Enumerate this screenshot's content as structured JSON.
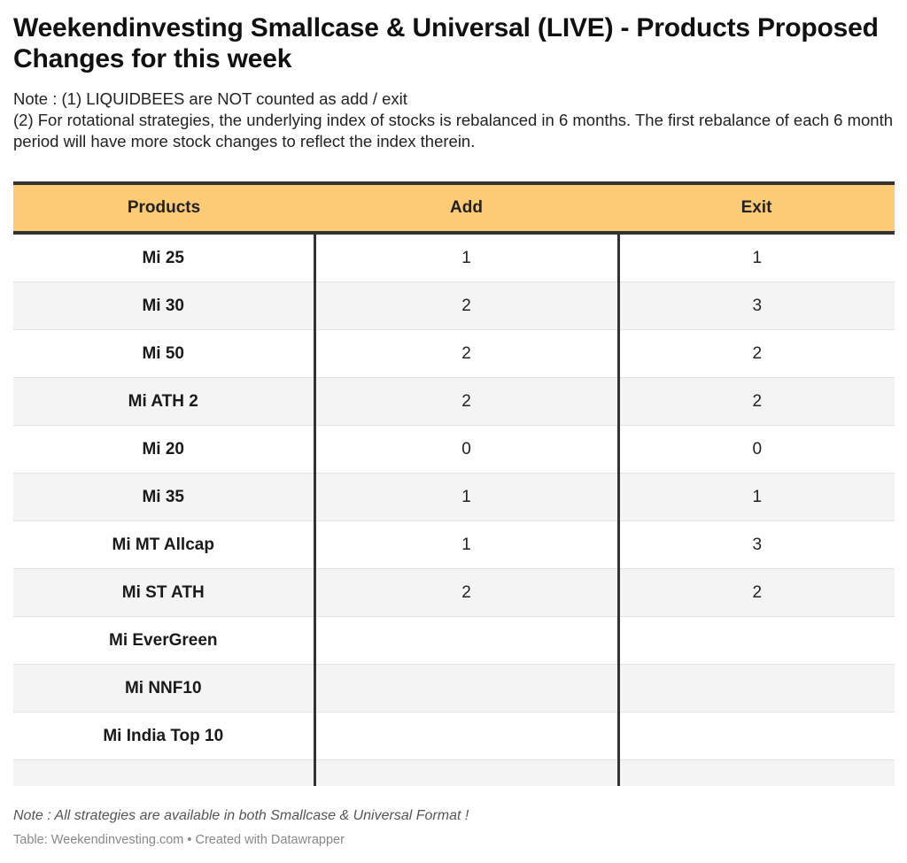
{
  "title": "Weekendinvesting Smallcase & Universal (LIVE) - Products Proposed Changes for this week",
  "notes": [
    "Note : (1) LIQUIDBEES are NOT counted as add / exit",
    "(2) For rotational strategies, the underlying index of stocks is rebalanced in 6 months. The first rebalance of each 6 month period will have more stock changes to reflect the index therein."
  ],
  "table": {
    "headers": [
      "Products",
      "Add",
      "Exit"
    ],
    "rows": [
      {
        "product": "Mi 25",
        "add": "1",
        "exit": "1"
      },
      {
        "product": "Mi 30",
        "add": "2",
        "exit": "3"
      },
      {
        "product": "Mi 50",
        "add": "2",
        "exit": "2"
      },
      {
        "product": "Mi ATH 2",
        "add": "2",
        "exit": "2"
      },
      {
        "product": "Mi 20",
        "add": "0",
        "exit": "0"
      },
      {
        "product": "Mi 35",
        "add": "1",
        "exit": "1"
      },
      {
        "product": "Mi MT Allcap",
        "add": "1",
        "exit": "3"
      },
      {
        "product": "Mi ST ATH",
        "add": "2",
        "exit": "2"
      },
      {
        "product": "Mi EverGreen",
        "add": "",
        "exit": ""
      },
      {
        "product": "Mi NNF10",
        "add": "",
        "exit": ""
      },
      {
        "product": "Mi India Top 10",
        "add": "",
        "exit": ""
      }
    ]
  },
  "footer_note": "Note : All strategies are available in both Smallcase & Universal Format !",
  "credit": "Table: Weekendinvesting.com • Created with Datawrapper",
  "colors": {
    "header_bg": "#fdca76",
    "rule": "#333333",
    "stripe": "#f4f4f4"
  }
}
